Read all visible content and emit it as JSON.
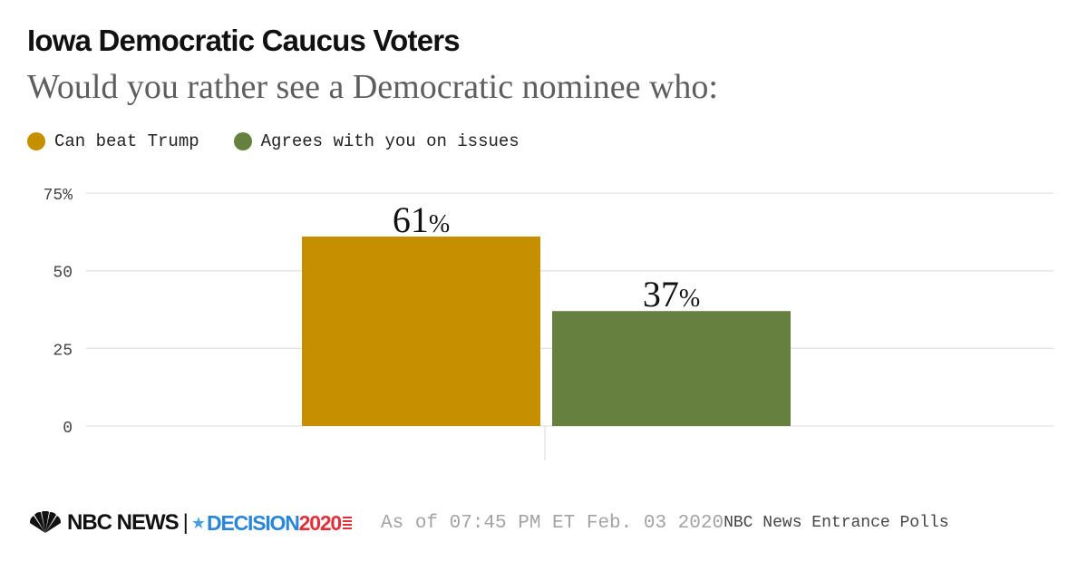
{
  "title": "Iowa Democratic Caucus Voters",
  "subtitle": "Would you rather see a Democratic nominee who:",
  "legend": [
    {
      "label": "Can beat Trump",
      "color": "#c68f00"
    },
    {
      "label": "Agrees with you on issues",
      "color": "#65803f"
    }
  ],
  "chart_data": {
    "type": "bar",
    "title": "Iowa Democratic Caucus Voters",
    "subtitle": "Would you rather see a Democratic nominee who:",
    "categories": [
      "Can beat Trump",
      "Agrees with you on issues"
    ],
    "values": [
      61,
      37
    ],
    "colors": [
      "#c68f00",
      "#65803f"
    ],
    "value_labels": [
      "61",
      "37"
    ],
    "value_suffix": "%",
    "yticks": [
      {
        "value": 0,
        "label": "0"
      },
      {
        "value": 25,
        "label": "25"
      },
      {
        "value": 50,
        "label": "50"
      },
      {
        "value": 75,
        "label": "75%"
      }
    ],
    "ylim": [
      0,
      75
    ],
    "xlabel": "",
    "ylabel": "",
    "grid": true,
    "legend_position": "top-left"
  },
  "footer": {
    "brand_nbc": "NBC NEWS",
    "brand_sep": "|",
    "brand_decision": "DECISION",
    "brand_year": "2020",
    "as_of": "As of 07:45 PM ET Feb. 03 2020",
    "source": "NBC News Entrance Polls",
    "icons": [
      "nbc-peacock-icon",
      "star-icon",
      "flag-icon"
    ]
  }
}
